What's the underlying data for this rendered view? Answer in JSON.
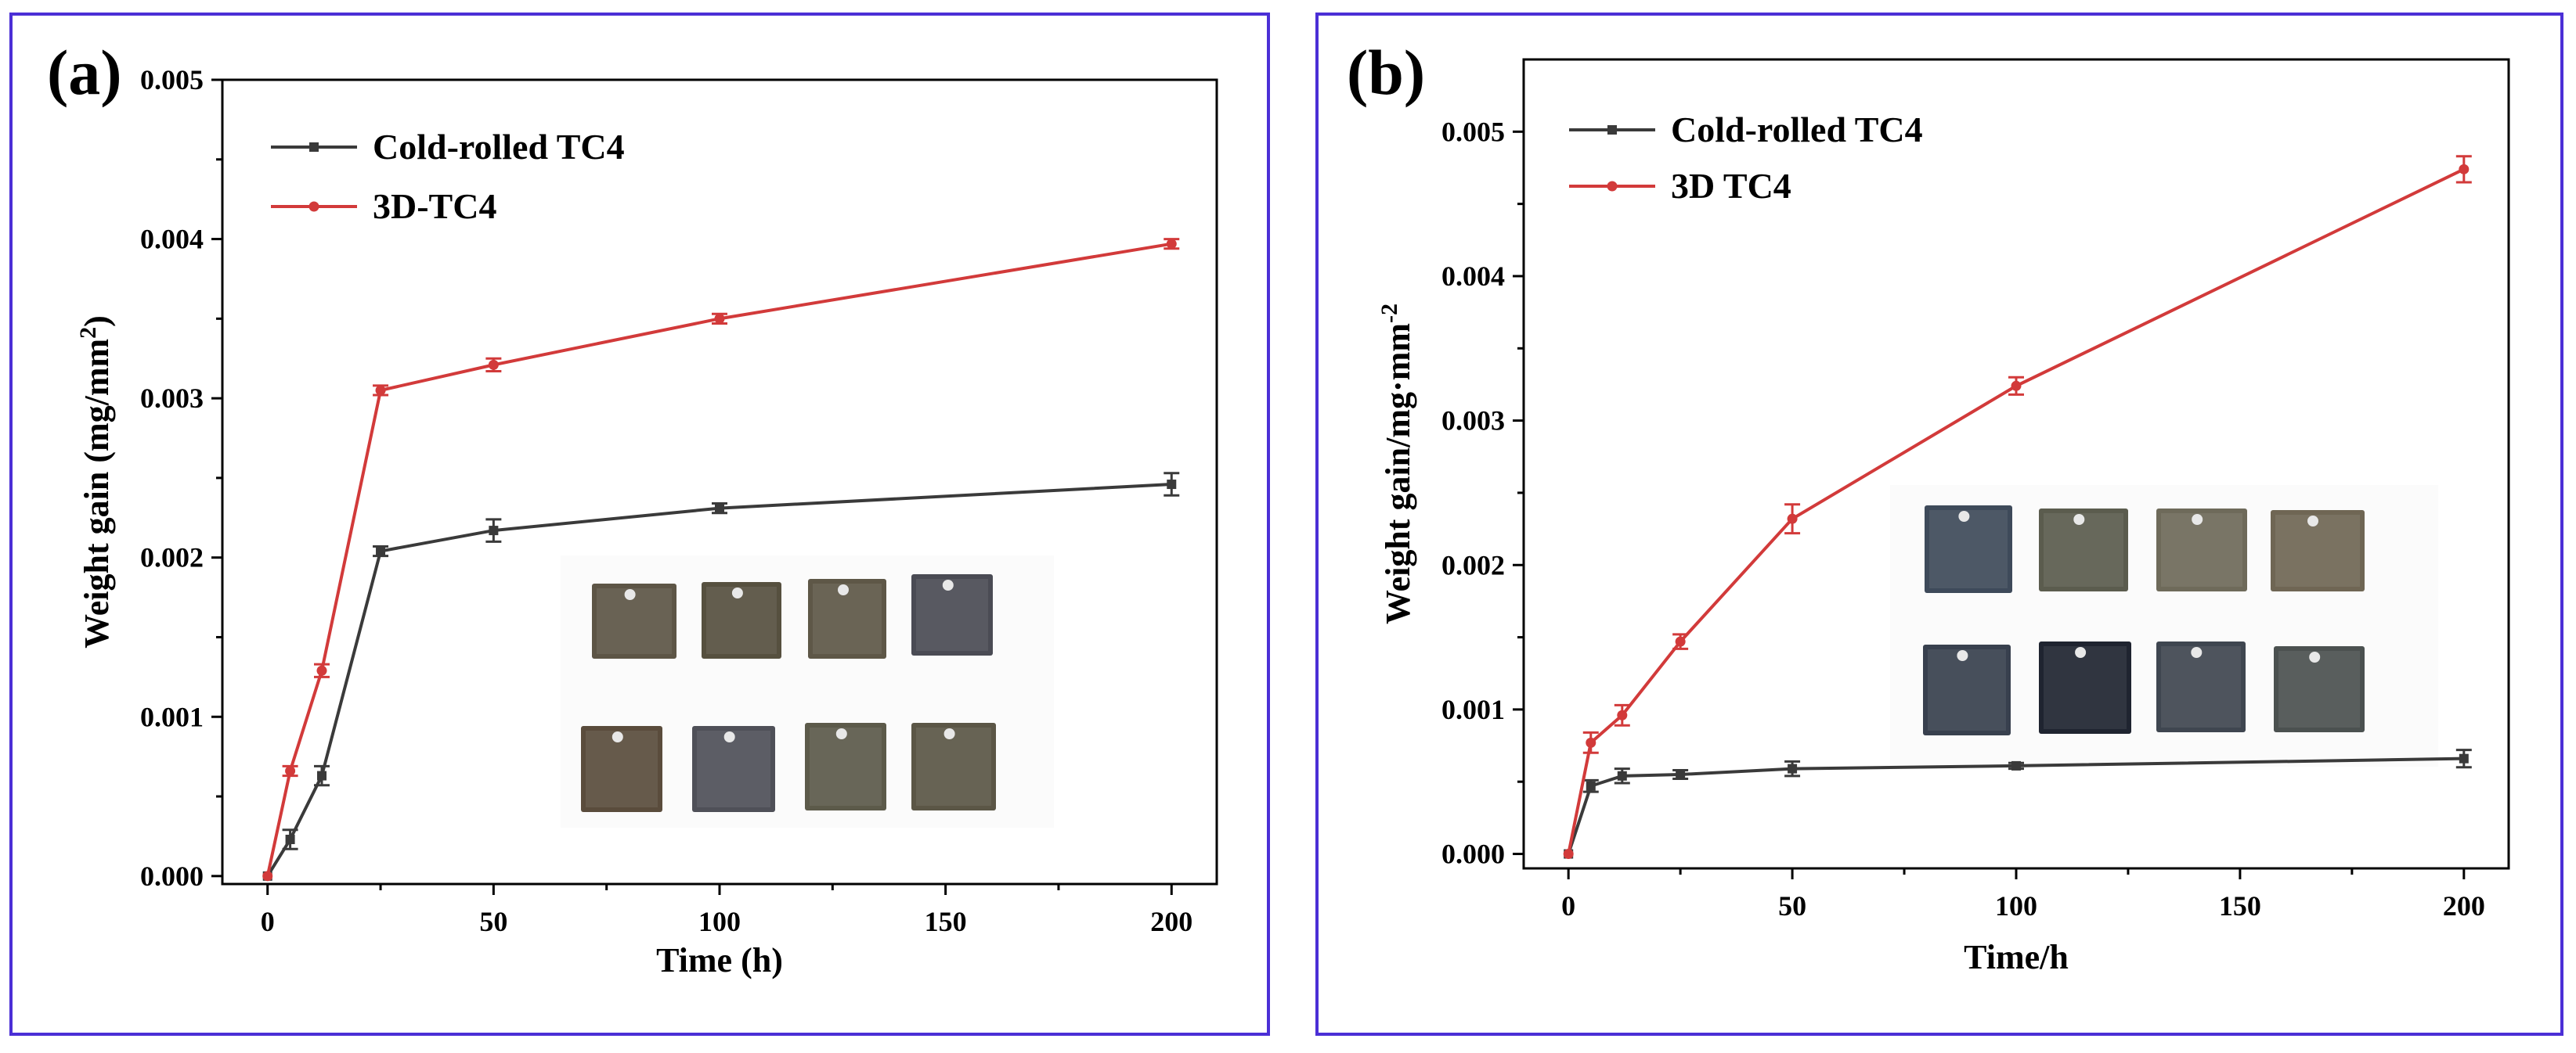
{
  "chart_data": [
    {
      "panel_label": "(a)",
      "type": "line",
      "xlabel": "Time (h)",
      "ylabel": "Weight gain (mg/mm",
      "ylabel_sup": "2",
      "ylabel_tail": ")",
      "xlim": [
        -10,
        210
      ],
      "ylim": [
        -5e-05,
        0.005
      ],
      "xticks": [
        0,
        50,
        100,
        150,
        200
      ],
      "xtick_labels": [
        "0",
        "50",
        "100",
        "150",
        "200"
      ],
      "yticks": [
        0.0,
        0.001,
        0.002,
        0.003,
        0.004,
        0.005
      ],
      "ytick_labels": [
        "0.000",
        "0.001",
        "0.002",
        "0.003",
        "0.004",
        "0.005"
      ],
      "legend_position": "top-left",
      "inset": "sample photos (2 rows x 4 coupons)",
      "series": [
        {
          "name": "Cold-rolled TC4",
          "color": "#3a3a3a",
          "marker": "square",
          "x": [
            0,
            5,
            12,
            25,
            50,
            100,
            200
          ],
          "y": [
            0.0,
            0.00023,
            0.00063,
            0.00204,
            0.00217,
            0.00231,
            0.00246
          ],
          "err": [
            0.0,
            6e-05,
            6e-05,
            3e-05,
            7e-05,
            3e-05,
            7e-05
          ]
        },
        {
          "name": "3D-TC4",
          "color": "#d23a3a",
          "marker": "circle",
          "x": [
            0,
            5,
            12,
            25,
            50,
            100,
            200
          ],
          "y": [
            0.0,
            0.00066,
            0.00129,
            0.00305,
            0.00321,
            0.0035,
            0.00397
          ],
          "err": [
            0.0,
            3e-05,
            4e-05,
            3e-05,
            4e-05,
            3e-05,
            3e-05
          ]
        }
      ]
    },
    {
      "panel_label": "(b)",
      "type": "line",
      "xlabel": "Time/h",
      "ylabel": "Weight gain/mg·mm",
      "ylabel_sup": "-2",
      "ylabel_tail": "",
      "xlim": [
        -10,
        210
      ],
      "ylim": [
        -0.0001,
        0.0055
      ],
      "xticks": [
        0,
        50,
        100,
        150,
        200
      ],
      "xtick_labels": [
        "0",
        "50",
        "100",
        "150",
        "200"
      ],
      "yticks": [
        0.0,
        0.001,
        0.002,
        0.003,
        0.004,
        0.005
      ],
      "ytick_labels": [
        "0.000",
        "0.001",
        "0.002",
        "0.003",
        "0.004",
        "0.005"
      ],
      "legend_position": "top-left",
      "inset": "sample photos (2 rows x 4 coupons)",
      "series": [
        {
          "name": "Cold-rolled TC4",
          "color": "#3a3a3a",
          "marker": "square",
          "x": [
            0,
            5,
            12,
            25,
            50,
            100,
            200
          ],
          "y": [
            0.0,
            0.00047,
            0.00054,
            0.00055,
            0.00059,
            0.00061,
            0.00066
          ],
          "err": [
            0.0,
            4e-05,
            5e-05,
            3e-05,
            5e-05,
            2e-05,
            6e-05
          ]
        },
        {
          "name": "3D TC4",
          "color": "#d23a3a",
          "marker": "circle",
          "x": [
            0,
            5,
            12,
            25,
            50,
            100,
            200
          ],
          "y": [
            0.0,
            0.00077,
            0.00096,
            0.00147,
            0.00232,
            0.00324,
            0.00474
          ],
          "err": [
            0.0,
            7e-05,
            7e-05,
            5e-05,
            0.0001,
            6e-05,
            9e-05
          ]
        }
      ]
    }
  ]
}
